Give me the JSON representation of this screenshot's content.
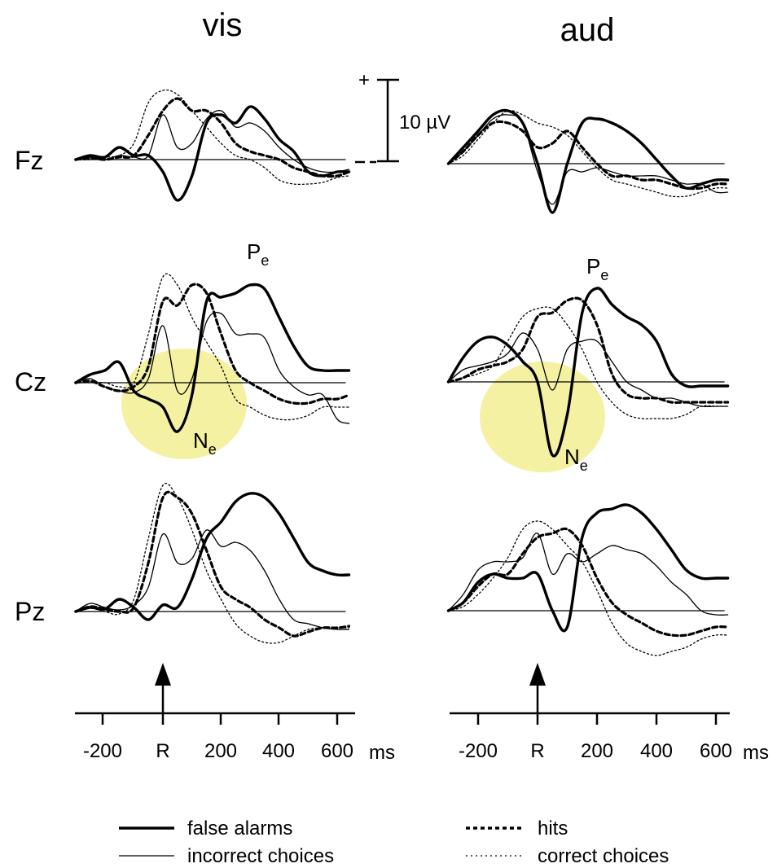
{
  "panel_titles": [
    "vis",
    "aud"
  ],
  "electrodes": [
    "Fz",
    "Cz",
    "Pz"
  ],
  "scale_bar": {
    "plus": "+",
    "label": "10 µV"
  },
  "x_axis": {
    "tick_labels": [
      "-200",
      "R",
      "200",
      "400",
      "600"
    ],
    "unit": "ms",
    "response_marker": "R"
  },
  "annotations": {
    "pe": "P",
    "ne": "N",
    "subscript": "e"
  },
  "legend": [
    {
      "label": "false alarms",
      "style": "thick-solid"
    },
    {
      "label": "incorrect choices",
      "style": "thin-solid"
    },
    {
      "label": "hits",
      "style": "thick-dashed"
    },
    {
      "label": "correct choices",
      "style": "thin-dotted"
    }
  ],
  "colors": {
    "highlight": "#f4f1a2",
    "ink": "#000000"
  },
  "chart_data": {
    "type": "line",
    "xlabel": "ms",
    "ylabel": "µV",
    "xlim": [
      -300,
      640
    ],
    "scale_uV": 10,
    "x": [
      -300,
      -250,
      -200,
      -150,
      -100,
      -50,
      0,
      50,
      100,
      150,
      200,
      250,
      300,
      350,
      400,
      450,
      500,
      550,
      600,
      640
    ],
    "panels": [
      {
        "modality": "vis",
        "electrodes": [
          {
            "name": "Fz",
            "series": [
              {
                "name": "false alarms",
                "values": [
                  0,
                  0.5,
                  0.3,
                  1.5,
                  0.5,
                  0.5,
                  -1.5,
                  -5,
                  -2,
                  4.5,
                  5.5,
                  4.5,
                  6.5,
                  5,
                  2.5,
                  1,
                  -1.5,
                  -2,
                  -1.5,
                  -1.5
                ]
              },
              {
                "name": "incorrect choices",
                "values": [
                  0,
                  0.3,
                  0,
                  0.5,
                  0.3,
                  0.5,
                  5.5,
                  1.5,
                  2,
                  5,
                  6,
                  4,
                  4.5,
                  3.5,
                  1.5,
                  0,
                  -1,
                  -1.5,
                  -1.5,
                  -1.2
                ]
              },
              {
                "name": "hits",
                "values": [
                  0,
                  0.2,
                  0,
                  0.3,
                  0.5,
                  3,
                  6,
                  7.5,
                  6,
                  6,
                  4.5,
                  2,
                  1,
                  0.5,
                  0,
                  -1,
                  -1.5,
                  -2,
                  -2,
                  -1.5
                ]
              },
              {
                "name": "correct choices",
                "values": [
                  0,
                  0,
                  0.3,
                  0.5,
                  2,
                  7,
                  8.5,
                  8,
                  6,
                  4,
                  2,
                  0.5,
                  0,
                  -1,
                  -2.5,
                  -3,
                  -3,
                  -2.8,
                  -2.2,
                  -2
                ]
              }
            ]
          },
          {
            "name": "Cz",
            "series": [
              {
                "name": "false alarms",
                "values": [
                  0,
                  1,
                  1.5,
                  2.5,
                  -1,
                  -2,
                  -3,
                  -6,
                  -1.5,
                  10,
                  10.5,
                  11,
                  12,
                  11.5,
                  8,
                  4.5,
                  2,
                  1.5,
                  1.5,
                  1.5
                ]
              },
              {
                "name": "incorrect choices",
                "values": [
                  0,
                  0.5,
                  -0.5,
                  -1,
                  -1.2,
                  0.5,
                  7,
                  -1,
                  0.5,
                  7.5,
                  8.5,
                  6,
                  6,
                  5.5,
                  1.5,
                  -0.5,
                  -1.5,
                  -1.5,
                  -4.5,
                  -5
                ]
              },
              {
                "name": "hits",
                "values": [
                  0,
                  0.2,
                  -0.5,
                  -1,
                  -0.5,
                  2,
                  10,
                  9.5,
                  12,
                  11,
                  6,
                  1.5,
                  0,
                  -1,
                  -2,
                  -2.5,
                  -2.5,
                  -2,
                  -2,
                  -1.5
                ]
              },
              {
                "name": "correct choices",
                "values": [
                  0,
                  0,
                  0,
                  -0.5,
                  0,
                  6,
                  13,
                  12,
                  8,
                  5,
                  2,
                  -2,
                  -3,
                  -4,
                  -4.5,
                  -4.5,
                  -4,
                  -3,
                  -3,
                  -3
                ]
              }
            ]
          },
          {
            "name": "Pz",
            "series": [
              {
                "name": "false alarms",
                "values": [
                  0,
                  0.5,
                  0.3,
                  1.5,
                  0.5,
                  -1,
                  0.8,
                  0.5,
                  4,
                  9,
                  11,
                  13.5,
                  14.5,
                  14,
                  12,
                  9,
                  6,
                  5,
                  4.5,
                  4.5
                ]
              },
              {
                "name": "incorrect choices",
                "values": [
                  0,
                  1,
                  0.5,
                  0.2,
                  0.8,
                  3,
                  9.5,
                  6,
                  6.5,
                  10,
                  8,
                  8.5,
                  7.5,
                  5,
                  1.5,
                  -1,
                  -1.5,
                  -2,
                  -2.2,
                  -2.2
                ]
              },
              {
                "name": "hits",
                "values": [
                  0,
                  0.6,
                  0.3,
                  0,
                  0.5,
                  6,
                  14,
                  14,
                  12,
                  7.5,
                  3,
                  1.5,
                  0.5,
                  -1,
                  -2,
                  -3,
                  -2.5,
                  -2,
                  -2,
                  -1.8
                ]
              },
              {
                "name": "correct choices",
                "values": [
                  0,
                  0.4,
                  0,
                  -0.3,
                  1.5,
                  9,
                  15.5,
                  14,
                  10,
                  5,
                  1.5,
                  -1.5,
                  -3,
                  -3.8,
                  -3.8,
                  -3,
                  -2.2,
                  -2,
                  -2,
                  -2
                ]
              }
            ]
          }
        ]
      },
      {
        "modality": "aud",
        "electrodes": [
          {
            "name": "Fz",
            "series": [
              {
                "name": "false alarms",
                "values": [
                  0,
                  2,
                  4,
                  6,
                  6.5,
                  5,
                  0,
                  -6,
                  0,
                  5,
                  5.5,
                  5,
                  4,
                  2.5,
                  0.5,
                  -1.5,
                  -3,
                  -2.5,
                  -2,
                  -2
                ]
              },
              {
                "name": "incorrect choices",
                "values": [
                  0,
                  1.5,
                  3.5,
                  5.5,
                  6,
                  5,
                  -1,
                  -5,
                  -1,
                  -1,
                  -0.5,
                  -1,
                  -1.5,
                  -1.5,
                  -1.5,
                  -2,
                  -2.5,
                  -2.5,
                  -3.5,
                  -3.5
                ]
              },
              {
                "name": "hits",
                "values": [
                  0,
                  1.5,
                  3.5,
                  5,
                  5,
                  4,
                  2,
                  2.5,
                  4,
                  2,
                  0,
                  -1.5,
                  -1.5,
                  -2,
                  -2,
                  -2.5,
                  -3,
                  -3,
                  -2.5,
                  -2.5
                ]
              },
              {
                "name": "correct choices",
                "values": [
                  0,
                  1,
                  3,
                  5,
                  6.5,
                  6,
                  5,
                  4.5,
                  3.5,
                  1.5,
                  -0.5,
                  -2,
                  -2.5,
                  -3,
                  -3.5,
                  -4,
                  -4,
                  -3.5,
                  -3,
                  -3
                ]
              }
            ]
          },
          {
            "name": "Cz",
            "series": [
              {
                "name": "false alarms",
                "values": [
                  0,
                  3,
                  5,
                  5.5,
                  4.5,
                  2.5,
                  0,
                  -9,
                  -4,
                  8.5,
                  11.5,
                  9.5,
                  8,
                  7,
                  5,
                  1,
                  -0.5,
                  -0.5,
                  -0.5,
                  -0.5
                ]
              },
              {
                "name": "incorrect choices",
                "values": [
                  0,
                  1.5,
                  2,
                  2.5,
                  3.5,
                  6,
                  4,
                  -1,
                  4,
                  5,
                  5,
                  2.5,
                  0,
                  -1,
                  -2,
                  -2,
                  -2.5,
                  -3,
                  -3,
                  -3
                ]
              },
              {
                "name": "hits",
                "values": [
                  0,
                  0.5,
                  1.5,
                  2,
                  2.5,
                  4,
                  8,
                  8.5,
                  10,
                  10,
                  7,
                  1,
                  -1.5,
                  -2,
                  -2,
                  -2.5,
                  -2.5,
                  -2.5,
                  -2.5,
                  -2.5
                ]
              },
              {
                "name": "correct choices",
                "values": [
                  0,
                  0.5,
                  1,
                  2,
                  5,
                  8,
                  9,
                  9,
                  7,
                  4,
                  0,
                  -2.5,
                  -4,
                  -4.5,
                  -4.5,
                  -4.5,
                  -4,
                  -3,
                  -3,
                  -3
                ]
              }
            ]
          },
          {
            "name": "Pz",
            "series": [
              {
                "name": "false alarms",
                "values": [
                  0,
                  1,
                  3.5,
                  4.5,
                  4,
                  4,
                  4.5,
                  0,
                  -2,
                  9,
                  12,
                  12.5,
                  13,
                  12,
                  10,
                  7.5,
                  5,
                  4,
                  4,
                  4
                ]
              },
              {
                "name": "incorrect choices",
                "values": [
                  0,
                  2,
                  5,
                  6,
                  6,
                  6.5,
                  9.5,
                  4.5,
                  7,
                  6,
                  7,
                  8,
                  7.5,
                  7,
                  5.5,
                  3.5,
                  2,
                  0,
                  -0.5,
                  -0.5
                ]
              },
              {
                "name": "hits",
                "values": [
                  0,
                  1,
                  3,
                  4.5,
                  4.5,
                  7,
                  9,
                  9.5,
                  10,
                  8,
                  4,
                  1,
                  -0.5,
                  -1.5,
                  -2.5,
                  -3,
                  -3,
                  -2.5,
                  -2,
                  -2
                ]
              },
              {
                "name": "correct choices",
                "values": [
                  0,
                  0.5,
                  2,
                  4,
                  6.5,
                  10,
                  11,
                  10,
                  8,
                  6,
                  2.5,
                  -1.5,
                  -4,
                  -5,
                  -5.5,
                  -5,
                  -4.5,
                  -3.5,
                  -3,
                  -3
                ]
              }
            ]
          }
        ]
      }
    ]
  }
}
